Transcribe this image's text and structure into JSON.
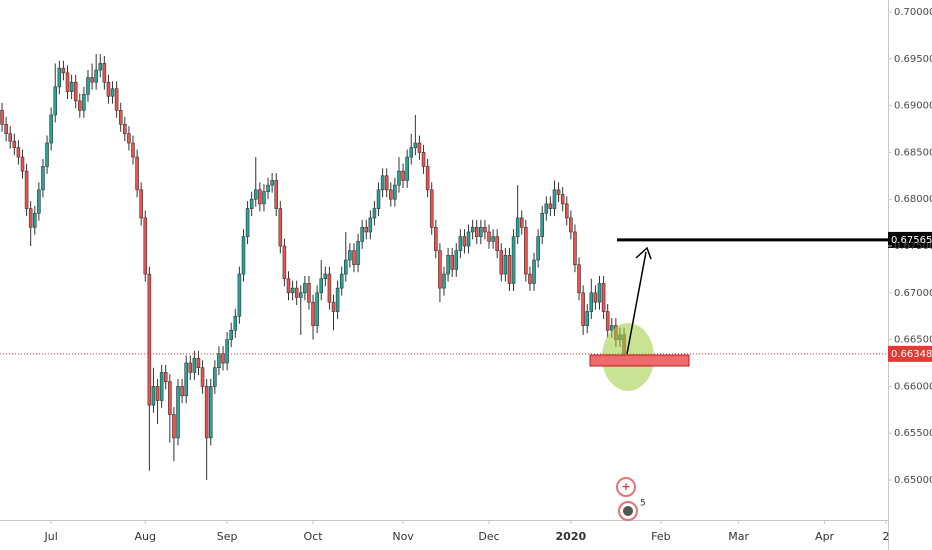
{
  "chart_data": {
    "type": "candlestick",
    "up_color": "#26a69a",
    "down_color": "#ef5350",
    "ylim": [
      0.64573,
      0.70128
    ],
    "xlim": [
      -0.5,
      216.5
    ],
    "yticks": [
      {
        "value": 0.65,
        "label": "0.65000"
      },
      {
        "value": 0.655,
        "label": "0.65500"
      },
      {
        "value": 0.66,
        "label": "0.66000"
      },
      {
        "value": 0.665,
        "label": "0.66500"
      },
      {
        "value": 0.67,
        "label": "0.67000"
      },
      {
        "value": 0.675,
        "label": "0.67500"
      },
      {
        "value": 0.68,
        "label": "0.68000"
      },
      {
        "value": 0.685,
        "label": "0.68500"
      },
      {
        "value": 0.69,
        "label": "0.69000"
      },
      {
        "value": 0.695,
        "label": "0.69500"
      },
      {
        "value": 0.7,
        "label": "0.70000"
      }
    ],
    "xticks": [
      {
        "value": 12,
        "label": "Jul"
      },
      {
        "value": 35,
        "label": "Aug"
      },
      {
        "value": 55,
        "label": "Sep"
      },
      {
        "value": 76,
        "label": "Oct"
      },
      {
        "value": 98,
        "label": "Nov"
      },
      {
        "value": 119,
        "label": "Dec"
      },
      {
        "value": 139,
        "label": "2020"
      },
      {
        "value": 161,
        "label": "Feb"
      },
      {
        "value": 180,
        "label": "Mar"
      },
      {
        "value": 201,
        "label": "Apr"
      },
      {
        "value": 216,
        "label": "2"
      }
    ],
    "open": [
      0.6895,
      0.688,
      0.687,
      0.6862,
      0.6855,
      0.6845,
      0.683,
      0.679,
      0.677,
      0.6785,
      0.681,
      0.6835,
      0.686,
      0.689,
      0.692,
      0.694,
      0.6935,
      0.6915,
      0.6925,
      0.6905,
      0.6895,
      0.6912,
      0.693,
      0.6925,
      0.6938,
      0.6945,
      0.6925,
      0.691,
      0.6918,
      0.6895,
      0.688,
      0.687,
      0.686,
      0.6845,
      0.681,
      0.678,
      0.672,
      0.658,
      0.66,
      0.6585,
      0.6615,
      0.6605,
      0.657,
      0.6545,
      0.66,
      0.659,
      0.6625,
      0.6615,
      0.663,
      0.662,
      0.66,
      0.6545,
      0.66,
      0.662,
      0.6635,
      0.6625,
      0.665,
      0.666,
      0.6675,
      0.672,
      0.676,
      0.679,
      0.68,
      0.681,
      0.6795,
      0.6808,
      0.6815,
      0.682,
      0.679,
      0.675,
      0.6715,
      0.67,
      0.6705,
      0.6695,
      0.67,
      0.671,
      0.669,
      0.6665,
      0.67,
      0.6715,
      0.672,
      0.669,
      0.668,
      0.6705,
      0.672,
      0.6735,
      0.6745,
      0.673,
      0.6755,
      0.677,
      0.6765,
      0.678,
      0.679,
      0.681,
      0.6825,
      0.681,
      0.68,
      0.6815,
      0.683,
      0.682,
      0.6845,
      0.6855,
      0.686,
      0.685,
      0.6835,
      0.681,
      0.677,
      0.6745,
      0.6705,
      0.672,
      0.674,
      0.6725,
      0.6745,
      0.676,
      0.675,
      0.6765,
      0.677,
      0.676,
      0.677,
      0.6765,
      0.6755,
      0.676,
      0.6745,
      0.672,
      0.674,
      0.671,
      0.676,
      0.678,
      0.677,
      0.672,
      0.671,
      0.6735,
      0.676,
      0.6785,
      0.6795,
      0.679,
      0.681,
      0.6805,
      0.6795,
      0.678,
      0.6765,
      0.673,
      0.67,
      0.6665,
      0.668,
      0.67,
      0.669,
      0.671,
      0.668,
      0.666,
      0.6665,
      0.665,
      0.6655
    ],
    "high": [
      0.6903,
      0.6888,
      0.6878,
      0.687,
      0.6863,
      0.6853,
      0.6838,
      0.6798,
      0.6793,
      0.6818,
      0.6843,
      0.6868,
      0.6898,
      0.6945,
      0.6948,
      0.6948,
      0.6943,
      0.6933,
      0.6933,
      0.6913,
      0.692,
      0.6938,
      0.6945,
      0.6955,
      0.6955,
      0.6953,
      0.6933,
      0.6926,
      0.6926,
      0.6903,
      0.6888,
      0.6878,
      0.6868,
      0.6853,
      0.6818,
      0.6788,
      0.6728,
      0.662,
      0.6608,
      0.6623,
      0.6623,
      0.6613,
      0.6578,
      0.6608,
      0.6608,
      0.6633,
      0.6633,
      0.6638,
      0.6638,
      0.6628,
      0.6608,
      0.6608,
      0.6628,
      0.6643,
      0.6643,
      0.6658,
      0.6668,
      0.6683,
      0.6728,
      0.6768,
      0.6798,
      0.6808,
      0.6845,
      0.6818,
      0.6816,
      0.6823,
      0.6828,
      0.6828,
      0.6798,
      0.6758,
      0.6723,
      0.6713,
      0.6713,
      0.6708,
      0.6718,
      0.6718,
      0.6698,
      0.6708,
      0.6735,
      0.6728,
      0.6728,
      0.6698,
      0.6713,
      0.6728,
      0.6765,
      0.6753,
      0.6753,
      0.6763,
      0.6778,
      0.6778,
      0.6788,
      0.6798,
      0.6818,
      0.6833,
      0.6833,
      0.6818,
      0.6823,
      0.6845,
      0.6838,
      0.6853,
      0.687,
      0.689,
      0.6868,
      0.6858,
      0.6843,
      0.6818,
      0.6778,
      0.6753,
      0.6728,
      0.6748,
      0.6748,
      0.6753,
      0.6768,
      0.6768,
      0.6773,
      0.6778,
      0.6778,
      0.6778,
      0.6778,
      0.6773,
      0.6768,
      0.6768,
      0.6753,
      0.6748,
      0.6748,
      0.6768,
      0.6815,
      0.6788,
      0.6778,
      0.6728,
      0.6743,
      0.6768,
      0.6793,
      0.6803,
      0.6803,
      0.682,
      0.6818,
      0.6813,
      0.6803,
      0.6788,
      0.6773,
      0.6738,
      0.6708,
      0.6688,
      0.6715,
      0.6708,
      0.6718,
      0.6718,
      0.6688,
      0.6673,
      0.6673,
      0.6663,
      0.6663
    ],
    "low": [
      0.6872,
      0.6862,
      0.6854,
      0.6847,
      0.6837,
      0.6822,
      0.6782,
      0.675,
      0.6762,
      0.6777,
      0.6802,
      0.6827,
      0.6852,
      0.6882,
      0.6912,
      0.6927,
      0.6907,
      0.6907,
      0.6897,
      0.6887,
      0.6887,
      0.6904,
      0.6917,
      0.6917,
      0.693,
      0.6917,
      0.6902,
      0.6902,
      0.6887,
      0.6872,
      0.6862,
      0.6852,
      0.6837,
      0.6802,
      0.6772,
      0.6712,
      0.651,
      0.6572,
      0.656,
      0.6577,
      0.6597,
      0.654,
      0.652,
      0.6537,
      0.6582,
      0.6582,
      0.6607,
      0.6607,
      0.6612,
      0.6592,
      0.65,
      0.6537,
      0.6592,
      0.6612,
      0.6617,
      0.6617,
      0.6642,
      0.6652,
      0.6667,
      0.6712,
      0.6752,
      0.6782,
      0.6792,
      0.6787,
      0.6787,
      0.68,
      0.6807,
      0.6782,
      0.6742,
      0.6707,
      0.6692,
      0.6692,
      0.6687,
      0.6655,
      0.6692,
      0.6682,
      0.665,
      0.6657,
      0.6692,
      0.6707,
      0.6682,
      0.666,
      0.6672,
      0.6697,
      0.6712,
      0.6727,
      0.6722,
      0.6722,
      0.6747,
      0.6757,
      0.6757,
      0.6772,
      0.6782,
      0.6802,
      0.6802,
      0.6792,
      0.6792,
      0.6807,
      0.6812,
      0.6812,
      0.6837,
      0.6847,
      0.6842,
      0.6827,
      0.6802,
      0.6762,
      0.6737,
      0.669,
      0.6697,
      0.6712,
      0.6717,
      0.6717,
      0.6737,
      0.6742,
      0.6742,
      0.6757,
      0.6752,
      0.6752,
      0.6757,
      0.6747,
      0.6747,
      0.6737,
      0.6712,
      0.6712,
      0.6702,
      0.6702,
      0.6752,
      0.6762,
      0.6712,
      0.6702,
      0.6702,
      0.6727,
      0.6752,
      0.6777,
      0.6782,
      0.6782,
      0.6797,
      0.6787,
      0.6772,
      0.6757,
      0.6722,
      0.6692,
      0.6655,
      0.6657,
      0.6672,
      0.6682,
      0.6682,
      0.6672,
      0.6652,
      0.6652,
      0.6642,
      0.6642,
      0.6625
    ],
    "close": [
      0.688,
      0.687,
      0.6862,
      0.6855,
      0.6845,
      0.683,
      0.679,
      0.677,
      0.6785,
      0.681,
      0.6835,
      0.686,
      0.689,
      0.692,
      0.694,
      0.6935,
      0.6915,
      0.6925,
      0.6905,
      0.6895,
      0.6912,
      0.693,
      0.6925,
      0.6938,
      0.6945,
      0.6925,
      0.691,
      0.6918,
      0.6895,
      0.688,
      0.687,
      0.686,
      0.6845,
      0.681,
      0.678,
      0.672,
      0.658,
      0.66,
      0.6585,
      0.6615,
      0.6605,
      0.657,
      0.6545,
      0.66,
      0.659,
      0.6625,
      0.6615,
      0.663,
      0.662,
      0.66,
      0.6545,
      0.66,
      0.662,
      0.6635,
      0.6625,
      0.665,
      0.666,
      0.6675,
      0.672,
      0.676,
      0.679,
      0.68,
      0.681,
      0.6795,
      0.6808,
      0.6815,
      0.682,
      0.679,
      0.675,
      0.6715,
      0.67,
      0.6705,
      0.6695,
      0.67,
      0.671,
      0.669,
      0.6665,
      0.67,
      0.6715,
      0.672,
      0.669,
      0.668,
      0.6705,
      0.672,
      0.6735,
      0.6745,
      0.673,
      0.6755,
      0.677,
      0.6765,
      0.678,
      0.679,
      0.681,
      0.6825,
      0.681,
      0.68,
      0.6815,
      0.683,
      0.682,
      0.6845,
      0.6855,
      0.686,
      0.685,
      0.6835,
      0.681,
      0.677,
      0.6745,
      0.6705,
      0.672,
      0.674,
      0.6725,
      0.6745,
      0.676,
      0.675,
      0.6765,
      0.677,
      0.676,
      0.677,
      0.6765,
      0.6755,
      0.676,
      0.6745,
      0.672,
      0.674,
      0.671,
      0.676,
      0.678,
      0.677,
      0.672,
      0.671,
      0.6735,
      0.676,
      0.6785,
      0.6795,
      0.679,
      0.681,
      0.6805,
      0.6795,
      0.678,
      0.6765,
      0.673,
      0.67,
      0.6665,
      0.668,
      0.67,
      0.669,
      0.671,
      0.668,
      0.666,
      0.6665,
      0.665,
      0.6655,
      0.66348
    ],
    "price_markers": [
      {
        "price": 0.67565,
        "color": "#000000"
      },
      {
        "price": 0.66348,
        "color": "#e53935"
      }
    ],
    "event_badge": "5"
  }
}
